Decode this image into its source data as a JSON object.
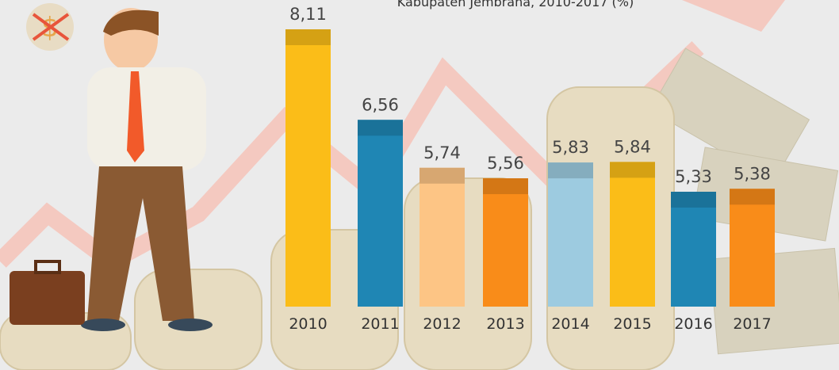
{
  "chart_data": {
    "type": "bar",
    "title": "Kabupaten Jembrana, 2010-2017 (%)",
    "categories": [
      "2010",
      "2011",
      "2012",
      "2013",
      "2014",
      "2015",
      "2016",
      "2017"
    ],
    "values": [
      8.11,
      6.56,
      5.74,
      5.56,
      5.83,
      5.84,
      5.33,
      5.38
    ],
    "value_labels": [
      "8,11",
      "6,56",
      "5,74",
      "5,56",
      "5,83",
      "5,84",
      "5,33",
      "5,38"
    ],
    "colors": [
      "#fbbd18",
      "#1f86b4",
      "#fdc585",
      "#f98c19",
      "#9dcbe0",
      "#fbbd18",
      "#1f86b4",
      "#f98c19"
    ]
  }
}
